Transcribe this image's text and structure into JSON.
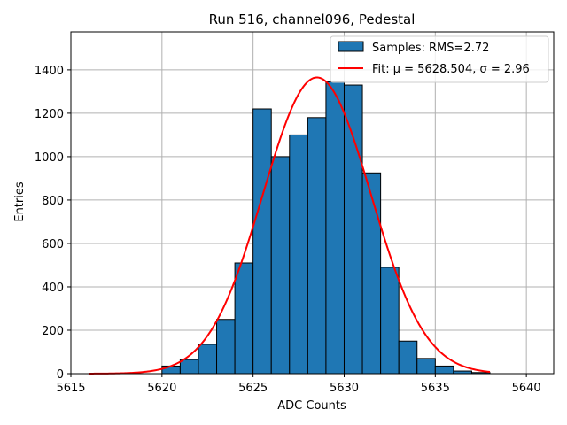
{
  "chart_data": {
    "type": "bar",
    "title": "Run 516, channel096, Pedestal",
    "xlabel": "ADC Counts",
    "ylabel": "Entries",
    "xlim": [
      5615,
      5641.5
    ],
    "ylim": [
      0,
      1575
    ],
    "xticks": [
      5615,
      5620,
      5625,
      5630,
      5635,
      5640
    ],
    "yticks": [
      0,
      200,
      400,
      600,
      800,
      1000,
      1200,
      1400
    ],
    "grid": true,
    "legend_position": "top-right",
    "bins": {
      "left_edges": [
        5620,
        5621,
        5622,
        5623,
        5624,
        5625,
        5626,
        5627,
        5628,
        5629,
        5630,
        5631,
        5632,
        5633,
        5634,
        5635,
        5636,
        5637
      ],
      "width": 1,
      "counts": [
        35,
        65,
        135,
        250,
        510,
        1220,
        1000,
        1100,
        1180,
        1345,
        1330,
        925,
        490,
        150,
        70,
        35,
        12,
        5
      ]
    },
    "series": [
      {
        "name": "Samples: RMS=2.72",
        "kind": "histogram",
        "color": "#1f77b4",
        "edge_color": "#000000"
      },
      {
        "name": "Fit: μ = 5628.504, σ = 2.96",
        "kind": "gaussian_fit",
        "color": "#ff0000",
        "mu": 5628.504,
        "sigma": 2.96,
        "amplitude": 1365,
        "x_range": [
          5616,
          5638
        ]
      }
    ]
  }
}
